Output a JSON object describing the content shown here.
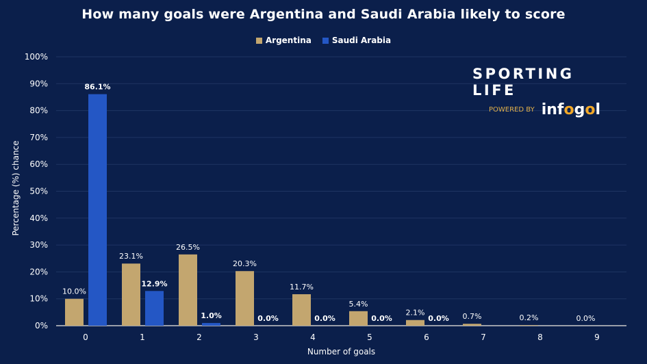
{
  "chart_data": {
    "type": "bar",
    "title": "How many goals were Argentina and Saudi Arabia likely to score",
    "xlabel": "Number of goals",
    "ylabel": "Percentage (%) chance",
    "categories": [
      "0",
      "1",
      "2",
      "3",
      "4",
      "5",
      "6",
      "7",
      "8",
      "9"
    ],
    "ylim": [
      0,
      100
    ],
    "yticks": [
      "0%",
      "10%",
      "20%",
      "30%",
      "40%",
      "50%",
      "60%",
      "70%",
      "80%",
      "90%",
      "100%"
    ],
    "grid": true,
    "legend": "top-center",
    "series": [
      {
        "name": "Argentina",
        "color": "#c3a66f",
        "values": [
          10.0,
          23.1,
          26.5,
          20.3,
          11.7,
          5.4,
          2.1,
          0.7,
          0.2,
          0.0
        ],
        "labels": [
          "10.0%",
          "23.1%",
          "26.5%",
          "20.3%",
          "11.7%",
          "5.4%",
          "2.1%",
          "0.7%",
          "0.2%",
          "0.0%"
        ]
      },
      {
        "name": "Saudi Arabia",
        "color": "#2457c5",
        "values": [
          86.1,
          12.9,
          1.0,
          0.0,
          0.0,
          0.0,
          0.0,
          null,
          null,
          null
        ],
        "labels": [
          "86.1%",
          "12.9%",
          "1.0%",
          "0.0%",
          "0.0%",
          "0.0%",
          "0.0%",
          null,
          null,
          null
        ]
      }
    ]
  },
  "branding": {
    "name": "SPORTING LIFE",
    "powered_by": "POWERED BY",
    "logo": "infogol"
  }
}
